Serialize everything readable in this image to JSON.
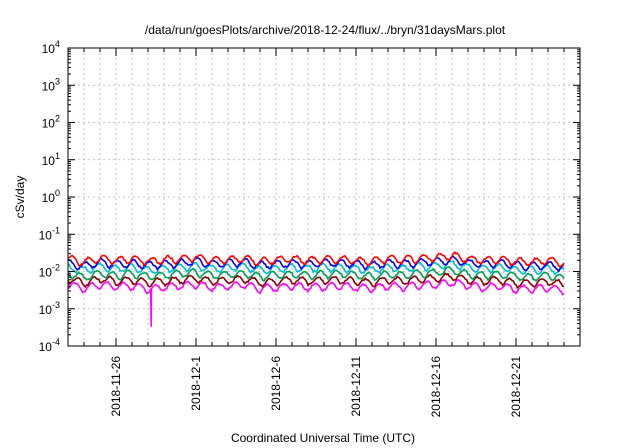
{
  "chart_data": {
    "type": "line",
    "title": "/data/run/goesPlots/archive/2018-12-24/flux/../bryn/31daysMars.plot",
    "xlabel": "Coordinated Universal Time (UTC)",
    "ylabel": "cSv/day",
    "yscale": "log",
    "ylim": [
      0.0001,
      10000
    ],
    "xlim": [
      "2018-11-23",
      "2018-12-25"
    ],
    "grid": true,
    "x_ticks": [
      "2018-11-26",
      "2018-12-1",
      "2018-12-6",
      "2018-12-11",
      "2018-12-16",
      "2018-12-21"
    ],
    "y_ticks": [
      {
        "base": "10",
        "exp": "-4",
        "value": 0.0001
      },
      {
        "base": "10",
        "exp": "-3",
        "value": 0.001
      },
      {
        "base": "10",
        "exp": "-2",
        "value": 0.01
      },
      {
        "base": "10",
        "exp": "-1",
        "value": 0.1
      },
      {
        "base": "10",
        "exp": "0",
        "value": 1
      },
      {
        "base": "10",
        "exp": "1",
        "value": 10
      },
      {
        "base": "10",
        "exp": "2",
        "value": 100
      },
      {
        "base": "10",
        "exp": "3",
        "value": 1000
      },
      {
        "base": "10",
        "exp": "4",
        "value": 10000
      }
    ],
    "series": [
      {
        "color": "#ff0000",
        "values": [
          0.022,
          0.018,
          0.023,
          0.02,
          0.022,
          0.019,
          0.021,
          0.022,
          0.024,
          0.02,
          0.021,
          0.023,
          0.019,
          0.021,
          0.022,
          0.02,
          0.021,
          0.022,
          0.02,
          0.019,
          0.022,
          0.021,
          0.023,
          0.024,
          0.027,
          0.022,
          0.02,
          0.021,
          0.019,
          0.018,
          0.02,
          0.017
        ]
      },
      {
        "color": "#0000ff",
        "values": [
          0.017,
          0.014,
          0.018,
          0.016,
          0.017,
          0.015,
          0.016,
          0.017,
          0.019,
          0.016,
          0.017,
          0.018,
          0.015,
          0.016,
          0.017,
          0.016,
          0.017,
          0.017,
          0.016,
          0.015,
          0.017,
          0.016,
          0.018,
          0.019,
          0.021,
          0.017,
          0.016,
          0.017,
          0.015,
          0.014,
          0.015,
          0.013
        ]
      },
      {
        "color": "#00bcd4",
        "values": [
          0.013,
          0.011,
          0.014,
          0.012,
          0.013,
          0.011,
          0.012,
          0.013,
          0.014,
          0.012,
          0.013,
          0.014,
          0.011,
          0.012,
          0.013,
          0.012,
          0.013,
          0.013,
          0.012,
          0.011,
          0.013,
          0.012,
          0.014,
          0.014,
          0.016,
          0.013,
          0.012,
          0.013,
          0.011,
          0.011,
          0.012,
          0.01
        ]
      },
      {
        "color": "#009e52",
        "values": [
          0.009,
          0.007,
          0.009,
          0.008,
          0.009,
          0.0075,
          0.008,
          0.009,
          0.0095,
          0.008,
          0.0085,
          0.009,
          0.0075,
          0.008,
          0.0085,
          0.008,
          0.0085,
          0.009,
          0.008,
          0.0075,
          0.0085,
          0.008,
          0.009,
          0.0095,
          0.011,
          0.0085,
          0.008,
          0.0085,
          0.0075,
          0.007,
          0.008,
          0.0065
        ]
      },
      {
        "color": "#8b0000",
        "values": [
          0.0065,
          0.005,
          0.0065,
          0.0055,
          0.006,
          0.005,
          0.0055,
          0.006,
          0.0065,
          0.0055,
          0.006,
          0.0065,
          0.005,
          0.0055,
          0.006,
          0.0055,
          0.006,
          0.006,
          0.0055,
          0.005,
          0.006,
          0.0055,
          0.0065,
          0.0065,
          0.0075,
          0.006,
          0.0055,
          0.006,
          0.005,
          0.005,
          0.0055,
          0.0045
        ]
      },
      {
        "color": "#ff00ff",
        "values": [
          0.0045,
          0.0035,
          0.0045,
          0.004,
          0.0042,
          0.0035,
          0.0038,
          0.0042,
          0.0045,
          0.0038,
          0.004,
          0.0045,
          0.0035,
          0.0038,
          0.0042,
          0.0038,
          0.004,
          0.0042,
          0.0038,
          0.0035,
          0.0042,
          0.0038,
          0.0045,
          0.0045,
          0.0052,
          0.0042,
          0.0038,
          0.004,
          0.0035,
          0.0034,
          0.0038,
          0.0032
        ]
      }
    ],
    "annotations": [
      {
        "series": "#ff00ff",
        "date": "2018-11-28.2",
        "value": 0.00033,
        "note": "dip"
      }
    ]
  },
  "colors": {
    "background": "#ffffff",
    "axis": "#000000",
    "grid": "#b5b5b5"
  }
}
